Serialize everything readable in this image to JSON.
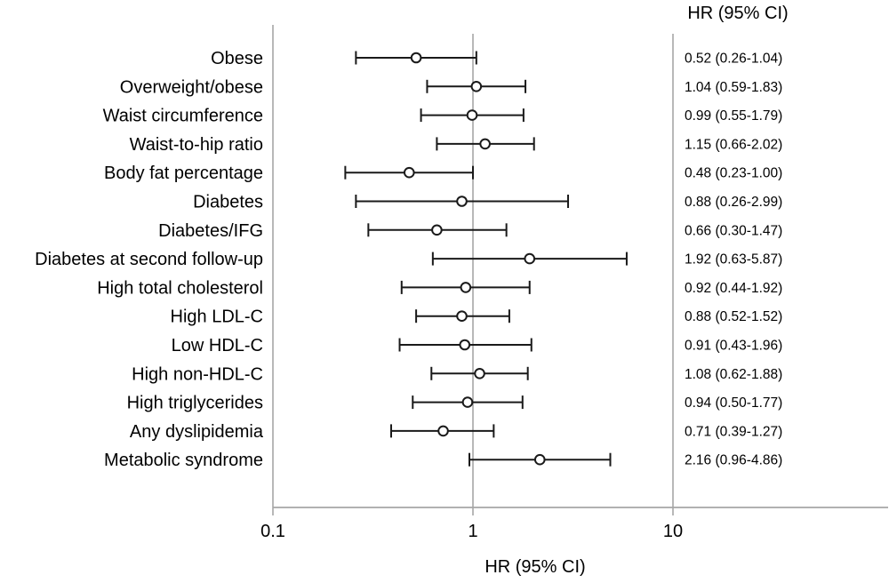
{
  "header": {
    "title": "HR (95% CI)"
  },
  "chart_data": {
    "type": "forest",
    "title": "HR (95% CI)",
    "xlabel": "HR (95% CI)",
    "x_scale": "log10",
    "x_ticks": [
      "0.1",
      "1",
      "10"
    ],
    "x_tick_values": [
      0.1,
      1,
      10
    ],
    "reference_line": 1.0,
    "grid_on": false,
    "rows": [
      {
        "label": "Obese",
        "hr": 0.52,
        "ci_low": 0.26,
        "ci_high": 1.04,
        "text": "0.52 (0.26-1.04)"
      },
      {
        "label": "Overweight/obese",
        "hr": 1.04,
        "ci_low": 0.59,
        "ci_high": 1.83,
        "text": "1.04 (0.59-1.83)"
      },
      {
        "label": "Waist circumference",
        "hr": 0.99,
        "ci_low": 0.55,
        "ci_high": 1.79,
        "text": "0.99 (0.55-1.79)"
      },
      {
        "label": "Waist-to-hip ratio",
        "hr": 1.15,
        "ci_low": 0.66,
        "ci_high": 2.02,
        "text": "1.15 (0.66-2.02)"
      },
      {
        "label": "Body fat percentage",
        "hr": 0.48,
        "ci_low": 0.23,
        "ci_high": 1.0,
        "text": "0.48 (0.23-1.00)"
      },
      {
        "label": "Diabetes",
        "hr": 0.88,
        "ci_low": 0.26,
        "ci_high": 2.99,
        "text": "0.88 (0.26-2.99)"
      },
      {
        "label": "Diabetes/IFG",
        "hr": 0.66,
        "ci_low": 0.3,
        "ci_high": 1.47,
        "text": "0.66 (0.30-1.47)"
      },
      {
        "label": "Diabetes at second follow-up",
        "hr": 1.92,
        "ci_low": 0.63,
        "ci_high": 5.87,
        "text": "1.92 (0.63-5.87)"
      },
      {
        "label": "High total cholesterol",
        "hr": 0.92,
        "ci_low": 0.44,
        "ci_high": 1.92,
        "text": "0.92 (0.44-1.92)"
      },
      {
        "label": "High LDL-C",
        "hr": 0.88,
        "ci_low": 0.52,
        "ci_high": 1.52,
        "text": "0.88 (0.52-1.52)"
      },
      {
        "label": "Low HDL-C",
        "hr": 0.91,
        "ci_low": 0.43,
        "ci_high": 1.96,
        "text": "0.91 (0.43-1.96)"
      },
      {
        "label": "High non-HDL-C",
        "hr": 1.08,
        "ci_low": 0.62,
        "ci_high": 1.88,
        "text": "1.08 (0.62-1.88)"
      },
      {
        "label": "High triglycerides",
        "hr": 0.94,
        "ci_low": 0.5,
        "ci_high": 1.77,
        "text": "0.94 (0.50-1.77)"
      },
      {
        "label": "Any dyslipidemia",
        "hr": 0.71,
        "ci_low": 0.39,
        "ci_high": 1.27,
        "text": "0.71 (0.39-1.27)"
      },
      {
        "label": "Metabolic syndrome",
        "hr": 2.16,
        "ci_low": 0.96,
        "ci_high": 4.86,
        "text": "2.16 (0.96-4.86)"
      }
    ],
    "colors": {
      "marker": "#1a1a1a",
      "ci_bar": "#1a1a1a",
      "grid_line": "#a6a6a6",
      "text": "#000000",
      "background": "#ffffff"
    }
  }
}
